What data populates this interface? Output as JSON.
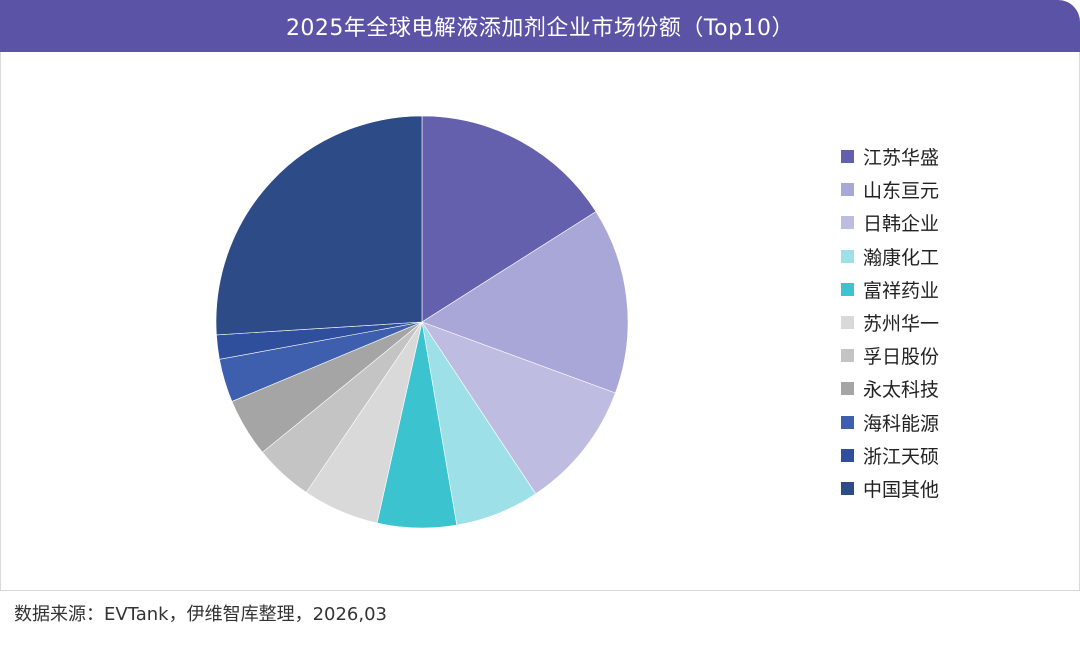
{
  "title": "2025年全球电解液添加剂企业市场份额（Top10）",
  "source": "数据来源：EVTank，伊维智库整理，2026,03",
  "chart_data": {
    "type": "pie",
    "title": "2025年全球电解液添加剂企业市场份额（Top10）",
    "legend_position": "right",
    "slices": [
      {
        "label": "江苏华盛",
        "value": 16.0,
        "color": "#6560ad"
      },
      {
        "label": "山东亘元",
        "value": 14.6,
        "color": "#a9a7d7"
      },
      {
        "label": "日韩企业",
        "value": 10.1,
        "color": "#bebde1"
      },
      {
        "label": "瀚康化工",
        "value": 6.6,
        "color": "#9de0e8"
      },
      {
        "label": "富祥药业",
        "value": 6.2,
        "color": "#3cc3d0"
      },
      {
        "label": "苏州华一",
        "value": 6.0,
        "color": "#d9d9d9"
      },
      {
        "label": "孚日股份",
        "value": 4.6,
        "color": "#c4c4c4"
      },
      {
        "label": "永太科技",
        "value": 4.6,
        "color": "#a5a5a5"
      },
      {
        "label": "海科能源",
        "value": 3.4,
        "color": "#3d5fae"
      },
      {
        "label": "浙江天硕",
        "value": 1.9,
        "color": "#2f4e9b"
      },
      {
        "label": "中国其他",
        "value": 26.0,
        "color": "#2c4b87"
      }
    ]
  }
}
